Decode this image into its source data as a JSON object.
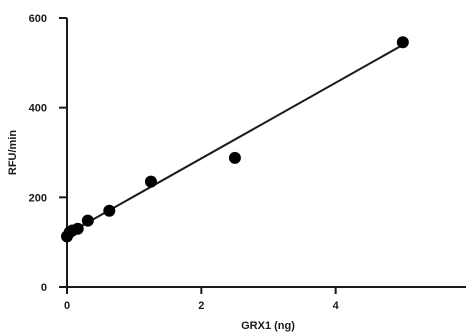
{
  "chart_data": {
    "type": "scatter",
    "xlabel": "GRX1 (ng)",
    "ylabel": "RFU/min",
    "xlim": [
      0,
      6
    ],
    "ylim": [
      0,
      600
    ],
    "x_ticks": [
      0,
      2,
      4
    ],
    "y_ticks": [
      0,
      200,
      400,
      600
    ],
    "points": [
      {
        "x": 0.0,
        "y": 113
      },
      {
        "x": 0.04,
        "y": 122
      },
      {
        "x": 0.08,
        "y": 126
      },
      {
        "x": 0.16,
        "y": 130
      },
      {
        "x": 0.31,
        "y": 148
      },
      {
        "x": 0.63,
        "y": 170
      },
      {
        "x": 1.25,
        "y": 235
      },
      {
        "x": 2.5,
        "y": 288
      },
      {
        "x": 5.0,
        "y": 546
      }
    ],
    "fit_line": {
      "x": [
        0,
        5.0
      ],
      "y": [
        118,
        540
      ]
    },
    "grid": false,
    "legend": "none"
  }
}
